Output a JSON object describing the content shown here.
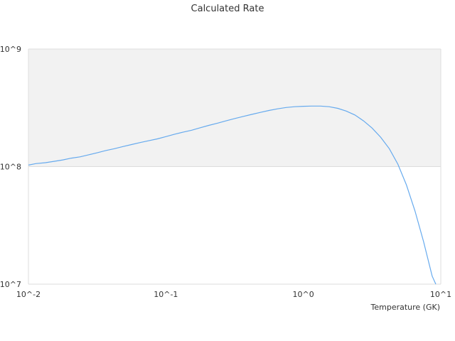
{
  "chart_data": {
    "type": "line",
    "title": "Calculated Rate",
    "xlabel": "Temperature (GK)",
    "ylabel": "",
    "xscale": "log",
    "yscale": "log",
    "xlim": [
      0.01,
      10
    ],
    "ylim": [
      10000000,
      1000000000
    ],
    "x_tick_labels": [
      "10^-2",
      "10^-1",
      "10^0",
      "10^1"
    ],
    "y_tick_labels": [
      "10^7",
      "10^8",
      "10^9"
    ],
    "grid": true,
    "legend": "none",
    "colors": {
      "line": "#66aaee",
      "band": "#f2f2f2",
      "grid": "#dddddd"
    },
    "series": [
      {
        "x": [
          0.01,
          0.0113,
          0.0133,
          0.0155,
          0.0178,
          0.0205,
          0.0237,
          0.0274,
          0.0316,
          0.0365,
          0.0422,
          0.0487,
          0.0562,
          0.0649,
          0.075,
          0.0866,
          0.1,
          0.115,
          0.133,
          0.154,
          0.178,
          0.205,
          0.237,
          0.274,
          0.316,
          0.365,
          0.422,
          0.487,
          0.562,
          0.649,
          0.75,
          0.866,
          1.0,
          1.15,
          1.33,
          1.54,
          1.78,
          2.05,
          2.37,
          2.74,
          3.16,
          3.65,
          4.22,
          4.87,
          5.62,
          6.49,
          7.5,
          8.66,
          9.2
        ],
        "y": [
          103000000,
          106000000,
          108000000,
          111000000,
          114000000,
          118000000,
          121000000,
          126000000,
          131000000,
          137000000,
          142000000,
          148000000,
          154000000,
          160000000,
          166000000,
          172000000,
          180000000,
          188000000,
          196000000,
          204000000,
          214000000,
          224000000,
          234000000,
          245000000,
          256000000,
          267000000,
          278000000,
          289000000,
          300000000,
          310000000,
          318000000,
          323000000,
          326000000,
          327000000,
          327000000,
          323000000,
          313000000,
          297000000,
          275000000,
          245000000,
          213000000,
          178000000,
          142000000,
          105000000,
          70000000,
          42000000,
          23000000,
          11700000,
          10000000
        ]
      }
    ]
  }
}
